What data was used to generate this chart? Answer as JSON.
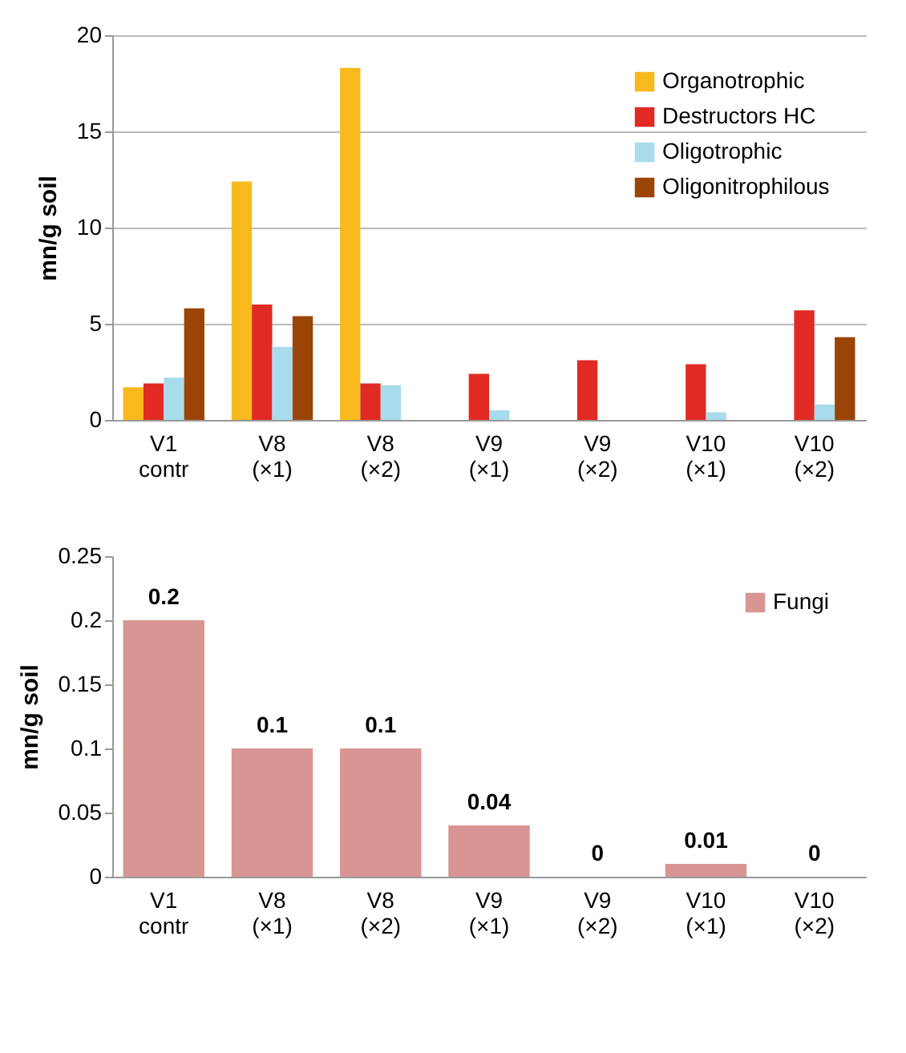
{
  "chart_data": [
    {
      "type": "bar",
      "ylabel": "mn/g soil",
      "categories": [
        "V1 contr",
        "V8 (×1)",
        "V8 (×2)",
        "V9 (×1)",
        "V9 (×2)",
        "V10 (×1)",
        "V10 (×2)"
      ],
      "ylim": [
        0,
        20
      ],
      "yticks": [
        0,
        5,
        10,
        15,
        20
      ],
      "grid": "y",
      "legend": "top right",
      "series": [
        {
          "name": "Organotrophic",
          "color": "#f9b91d",
          "values": [
            1.7,
            12.4,
            18.3,
            0,
            0,
            0,
            0
          ]
        },
        {
          "name": "Destructors HC",
          "color": "#e02a23",
          "values": [
            1.9,
            6.0,
            1.9,
            2.4,
            3.1,
            2.9,
            5.7
          ]
        },
        {
          "name": "Oligotrophic",
          "color": "#a8dcec",
          "values": [
            2.2,
            3.8,
            1.8,
            0.5,
            0,
            0.4,
            0.8
          ]
        },
        {
          "name": "Oligonitrophilous",
          "color": "#9a4507",
          "values": [
            5.8,
            5.4,
            0,
            0,
            0,
            0,
            4.3
          ]
        }
      ]
    },
    {
      "type": "bar",
      "ylabel": "mn/g soil",
      "categories": [
        "V1 contr",
        "V8 (×1)",
        "V8 (×2)",
        "V9 (×1)",
        "V9 (×2)",
        "V10 (×1)",
        "V10 (×2)"
      ],
      "ylim": [
        0,
        0.25
      ],
      "yticks": [
        0,
        0.05,
        0.1,
        0.15,
        0.2,
        0.25
      ],
      "legend": "top right",
      "data_labels": true,
      "series": [
        {
          "name": "Fungi",
          "color": "#d99593",
          "values": [
            0.2,
            0.1,
            0.1,
            0.04,
            0,
            0.01,
            0
          ]
        }
      ]
    }
  ]
}
